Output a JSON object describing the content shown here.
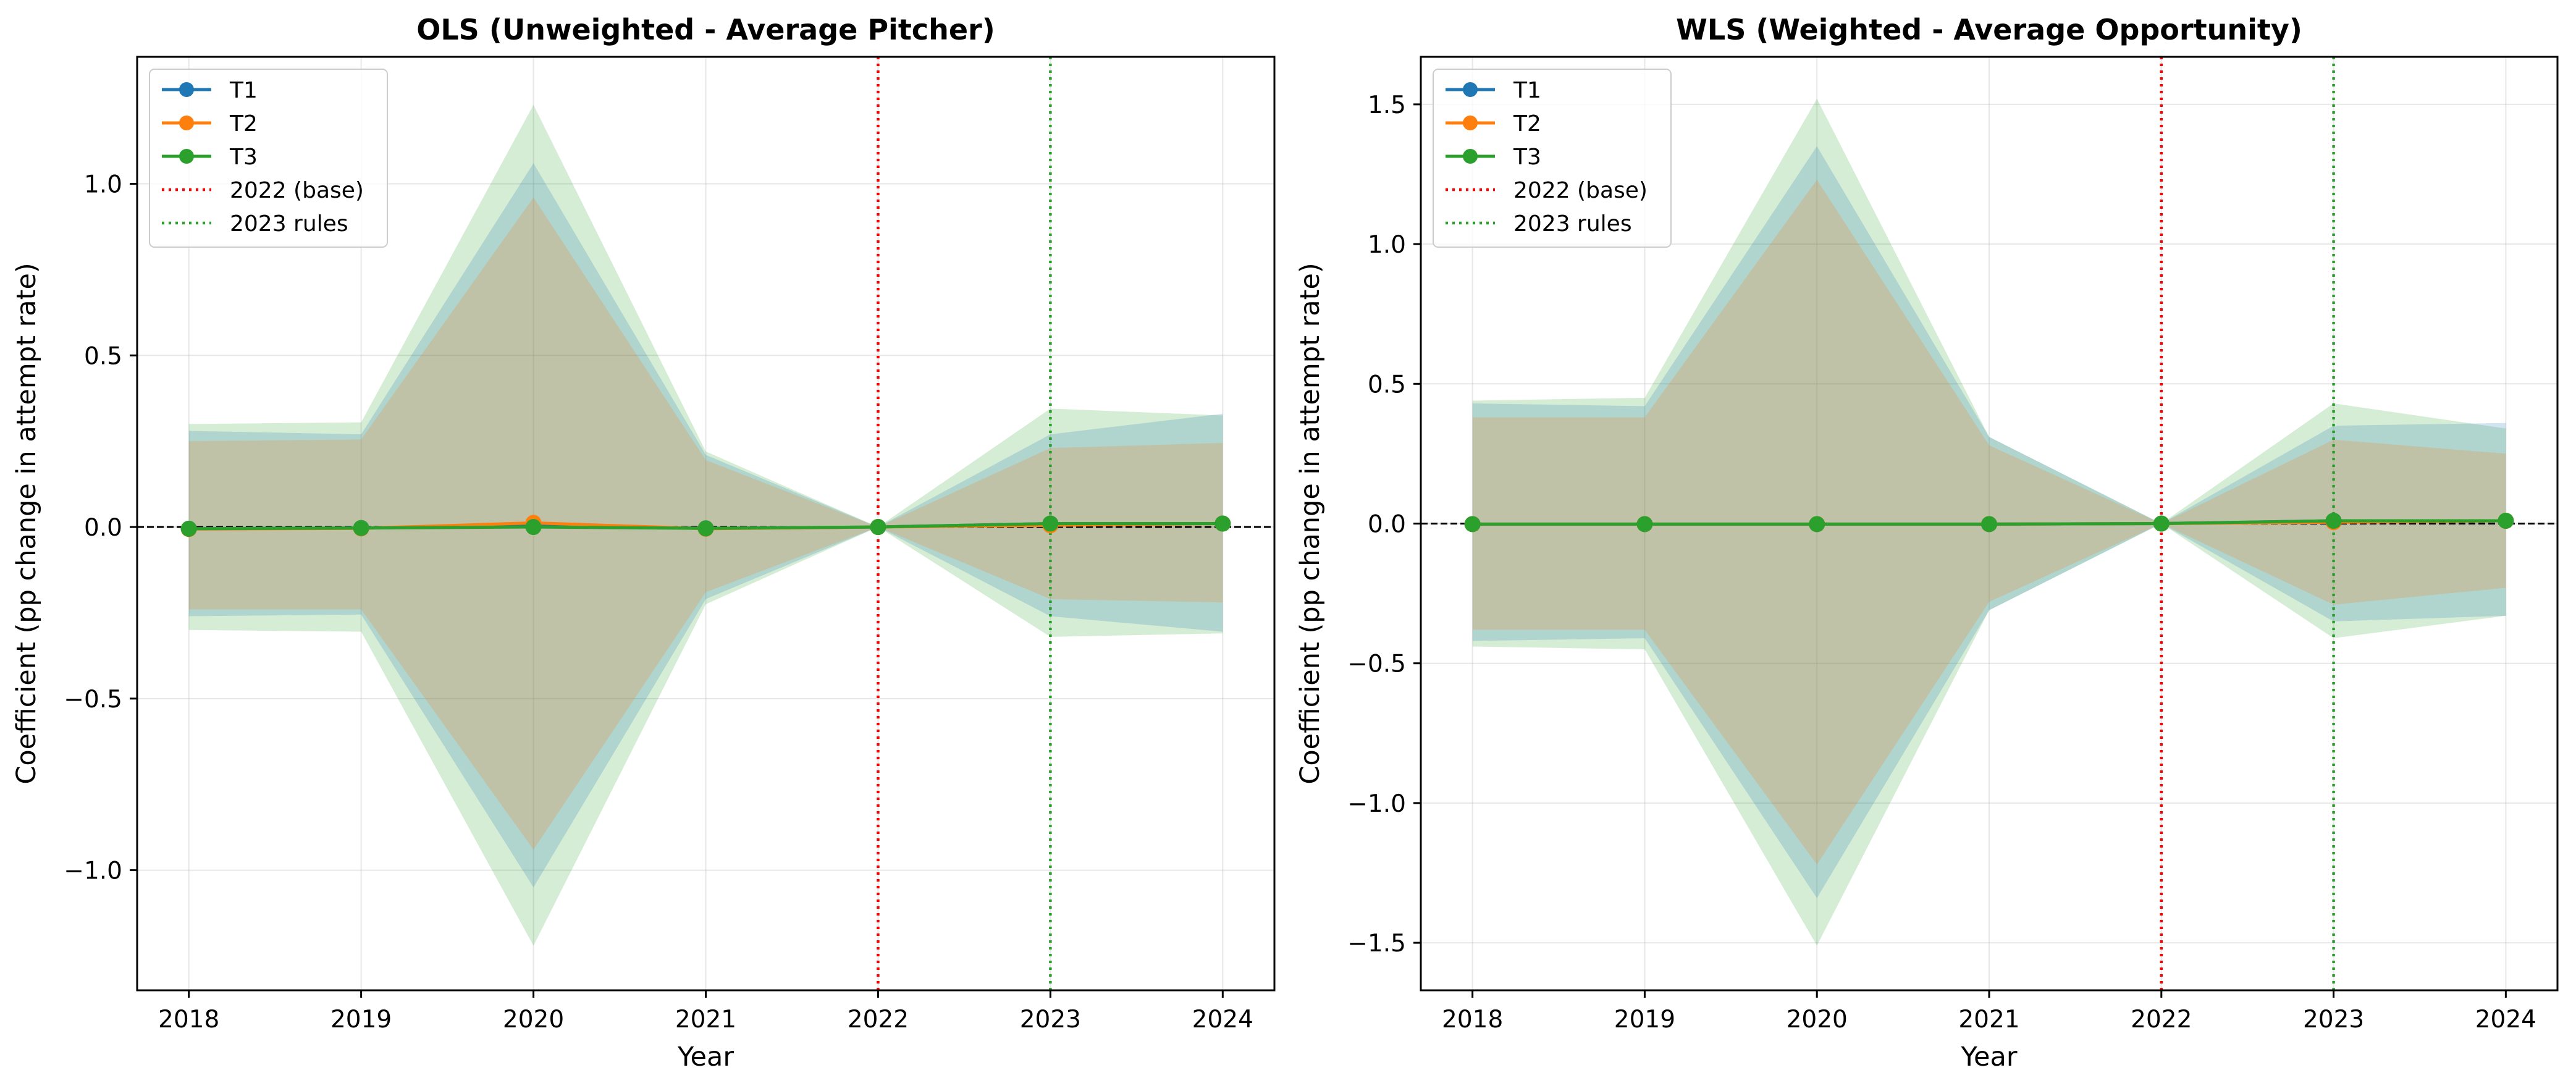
{
  "chart_data": [
    {
      "type": "line",
      "title": "OLS (Unweighted - Average Pitcher)",
      "xlabel": "Year",
      "ylabel": "Coefficient (pp change in attempt rate)",
      "x": [
        2018,
        2019,
        2020,
        2021,
        2022,
        2023,
        2024
      ],
      "xlim": [
        2017.7,
        2024.3
      ],
      "ylim": [
        -1.35,
        1.37
      ],
      "yticks": [
        -1.0,
        -0.5,
        0.0,
        0.5,
        1.0
      ],
      "ytick_labels": [
        "−1.0",
        "−0.5",
        "0.0",
        "0.5",
        "1.0"
      ],
      "grid": true,
      "legend_position": "upper left",
      "series": [
        {
          "name": "T1",
          "color": "#1f77b4",
          "values": [
            -0.005,
            -0.003,
            0.005,
            -0.004,
            0.0,
            0.01,
            0.01
          ],
          "ci_lower": [
            -0.26,
            -0.255,
            -1.05,
            -0.21,
            0.0,
            -0.26,
            -0.305
          ],
          "ci_upper": [
            0.28,
            0.27,
            1.06,
            0.21,
            0.0,
            0.27,
            0.33
          ]
        },
        {
          "name": "T2",
          "color": "#ff7f0e",
          "values": [
            -0.006,
            -0.004,
            0.012,
            -0.005,
            0.0,
            0.005,
            0.01
          ],
          "ci_lower": [
            -0.24,
            -0.24,
            -0.94,
            -0.19,
            0.0,
            -0.21,
            -0.22
          ],
          "ci_upper": [
            0.25,
            0.255,
            0.96,
            0.195,
            0.0,
            0.23,
            0.245
          ]
        },
        {
          "name": "T3",
          "color": "#2ca02c",
          "values": [
            -0.005,
            -0.003,
            0.0,
            -0.004,
            0.0,
            0.01,
            0.01
          ],
          "ci_lower": [
            -0.3,
            -0.305,
            -1.22,
            -0.225,
            0.0,
            -0.32,
            -0.31
          ],
          "ci_upper": [
            0.3,
            0.305,
            1.23,
            0.22,
            0.0,
            0.345,
            0.325
          ]
        }
      ],
      "reference_lines": [
        {
          "label": "2022 (base)",
          "x": 2022,
          "color": "#ff0000",
          "style": "dotted"
        },
        {
          "label": "2023 rules",
          "x": 2023,
          "color": "#2ca02c",
          "style": "dotted"
        }
      ],
      "zero_line": {
        "y": 0,
        "color": "#000000",
        "style": "dashed"
      }
    },
    {
      "type": "line",
      "title": "WLS (Weighted - Average Opportunity)",
      "xlabel": "Year",
      "ylabel": "Coefficient (pp change in attempt rate)",
      "x": [
        2018,
        2019,
        2020,
        2021,
        2022,
        2023,
        2024
      ],
      "xlim": [
        2017.7,
        2024.3
      ],
      "ylim": [
        -1.67,
        1.67
      ],
      "yticks": [
        -1.5,
        -1.0,
        -0.5,
        0.0,
        0.5,
        1.0,
        1.5
      ],
      "ytick_labels": [
        "−1.5",
        "−1.0",
        "−0.5",
        "0.0",
        "0.5",
        "1.0",
        "1.5"
      ],
      "grid": true,
      "legend_position": "upper left",
      "series": [
        {
          "name": "T1",
          "color": "#1f77b4",
          "values": [
            -0.002,
            -0.002,
            -0.002,
            -0.002,
            0.0,
            0.01,
            0.01
          ],
          "ci_lower": [
            -0.42,
            -0.41,
            -1.34,
            -0.31,
            0.0,
            -0.35,
            -0.33
          ],
          "ci_upper": [
            0.43,
            0.42,
            1.35,
            0.31,
            0.0,
            0.35,
            0.36
          ]
        },
        {
          "name": "T2",
          "color": "#ff7f0e",
          "values": [
            -0.002,
            -0.002,
            -0.002,
            -0.002,
            0.0,
            0.005,
            0.01
          ],
          "ci_lower": [
            -0.38,
            -0.38,
            -1.22,
            -0.28,
            0.0,
            -0.29,
            -0.23
          ],
          "ci_upper": [
            0.38,
            0.38,
            1.23,
            0.28,
            0.0,
            0.3,
            0.25
          ]
        },
        {
          "name": "T3",
          "color": "#2ca02c",
          "values": [
            -0.002,
            -0.002,
            -0.002,
            -0.002,
            0.0,
            0.01,
            0.01
          ],
          "ci_lower": [
            -0.44,
            -0.45,
            -1.51,
            -0.31,
            0.0,
            -0.41,
            -0.33
          ],
          "ci_upper": [
            0.44,
            0.45,
            1.52,
            0.31,
            0.0,
            0.43,
            0.34
          ]
        }
      ],
      "reference_lines": [
        {
          "label": "2022 (base)",
          "x": 2022,
          "color": "#ff0000",
          "style": "dotted"
        },
        {
          "label": "2023 rules",
          "x": 2023,
          "color": "#2ca02c",
          "style": "dotted"
        }
      ],
      "zero_line": {
        "y": 0,
        "color": "#000000",
        "style": "dashed"
      }
    }
  ]
}
